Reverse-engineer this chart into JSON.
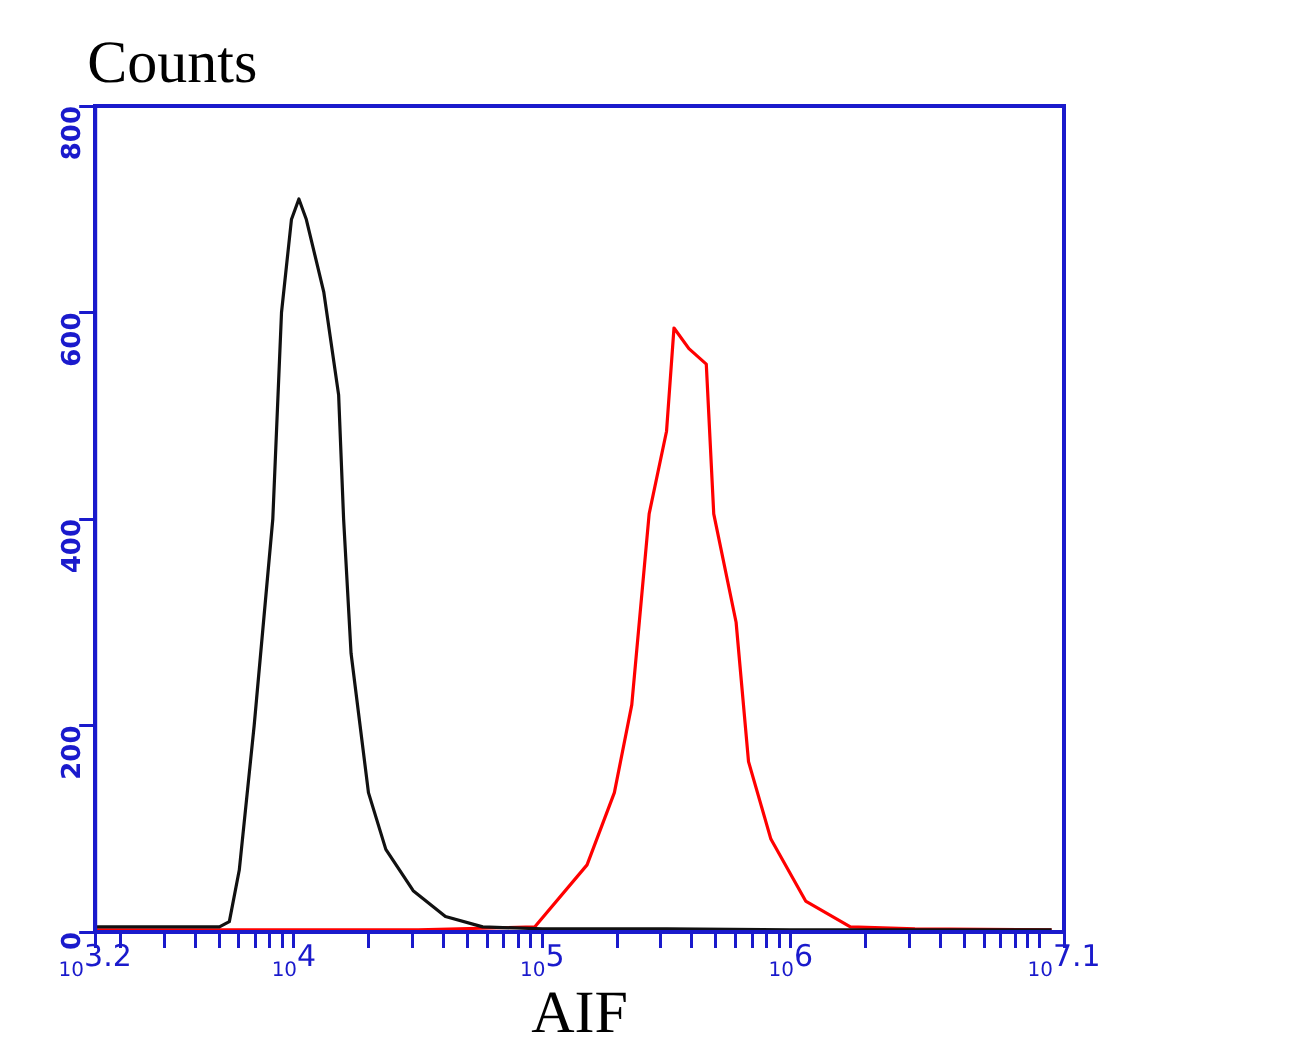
{
  "chart_data": {
    "type": "line",
    "xlabel": "AIF",
    "ylabel": "Counts",
    "log": "x",
    "grid": false,
    "legend": false,
    "marker": "none",
    "line_style": "solid",
    "xlim": [
      1585,
      12589254
    ],
    "ylim": [
      0,
      800
    ],
    "yticks": [
      0,
      200,
      400,
      600,
      800
    ],
    "xticks": [
      {
        "value": 1585,
        "label": "10$^{3.2}$"
      },
      {
        "value": 2000,
        "label": null
      },
      {
        "value": 3000,
        "label": null
      },
      {
        "value": 4000,
        "label": null
      },
      {
        "value": 5000,
        "label": null
      },
      {
        "value": 6000,
        "label": null
      },
      {
        "value": 7000,
        "label": null
      },
      {
        "value": 8000,
        "label": null
      },
      {
        "value": 9000,
        "label": null
      },
      {
        "value": 10000,
        "label": "10$^{4}$"
      },
      {
        "value": 20000,
        "label": null
      },
      {
        "value": 30000,
        "label": null
      },
      {
        "value": 40000,
        "label": null
      },
      {
        "value": 50000,
        "label": null
      },
      {
        "value": 60000,
        "label": null
      },
      {
        "value": 70000,
        "label": null
      },
      {
        "value": 80000,
        "label": null
      },
      {
        "value": 90000,
        "label": null
      },
      {
        "value": 100000,
        "label": "10$^{5}$"
      },
      {
        "value": 200000,
        "label": null
      },
      {
        "value": 300000,
        "label": null
      },
      {
        "value": 400000,
        "label": null
      },
      {
        "value": 500000,
        "label": null
      },
      {
        "value": 600000,
        "label": null
      },
      {
        "value": 700000,
        "label": null
      },
      {
        "value": 800000,
        "label": null
      },
      {
        "value": 900000,
        "label": null
      },
      {
        "value": 1000000,
        "label": "10$^{6}$"
      },
      {
        "value": 2000000,
        "label": null
      },
      {
        "value": 3000000,
        "label": null
      },
      {
        "value": 4000000,
        "label": null
      },
      {
        "value": 5000000,
        "label": null
      },
      {
        "value": 6000000,
        "label": null
      },
      {
        "value": 7000000,
        "label": null
      },
      {
        "value": 8000000,
        "label": null
      },
      {
        "value": 9000000,
        "label": null
      },
      {
        "value": 10000000,
        "label": null
      },
      {
        "value": 12589254,
        "label": "10$^{7.1}$"
      }
    ],
    "series": [
      {
        "color": "#111111",
        "x": [
          1585,
          3162,
          5012,
          5495,
          6026,
          6918,
          8222,
          8913,
          9772,
          10471,
          11220,
          13183,
          15136,
          15849,
          16982,
          19953,
          23442,
          30200,
          40738,
          57544,
          100000,
          316228,
          1000000,
          3162278,
          11220185
        ],
        "values": [
          5,
          5,
          5,
          10,
          60,
          200,
          400,
          600,
          690,
          710,
          690,
          620,
          520,
          400,
          270,
          135,
          80,
          40,
          15,
          5,
          3,
          3,
          2,
          2,
          2
        ]
      },
      {
        "color": "#ff0000",
        "x": [
          1585,
          10000,
          31623,
          93325,
          151356,
          194984,
          229087,
          269153,
          316228,
          338844,
          389045,
          457088,
          489779,
          602560,
          676083,
          831764,
          1148154,
          1737801,
          3162278,
          11220185
        ],
        "values": [
          2,
          2,
          2,
          5,
          65,
          135,
          220,
          405,
          485,
          585,
          565,
          550,
          405,
          300,
          165,
          90,
          30,
          5,
          3,
          2
        ]
      }
    ]
  }
}
